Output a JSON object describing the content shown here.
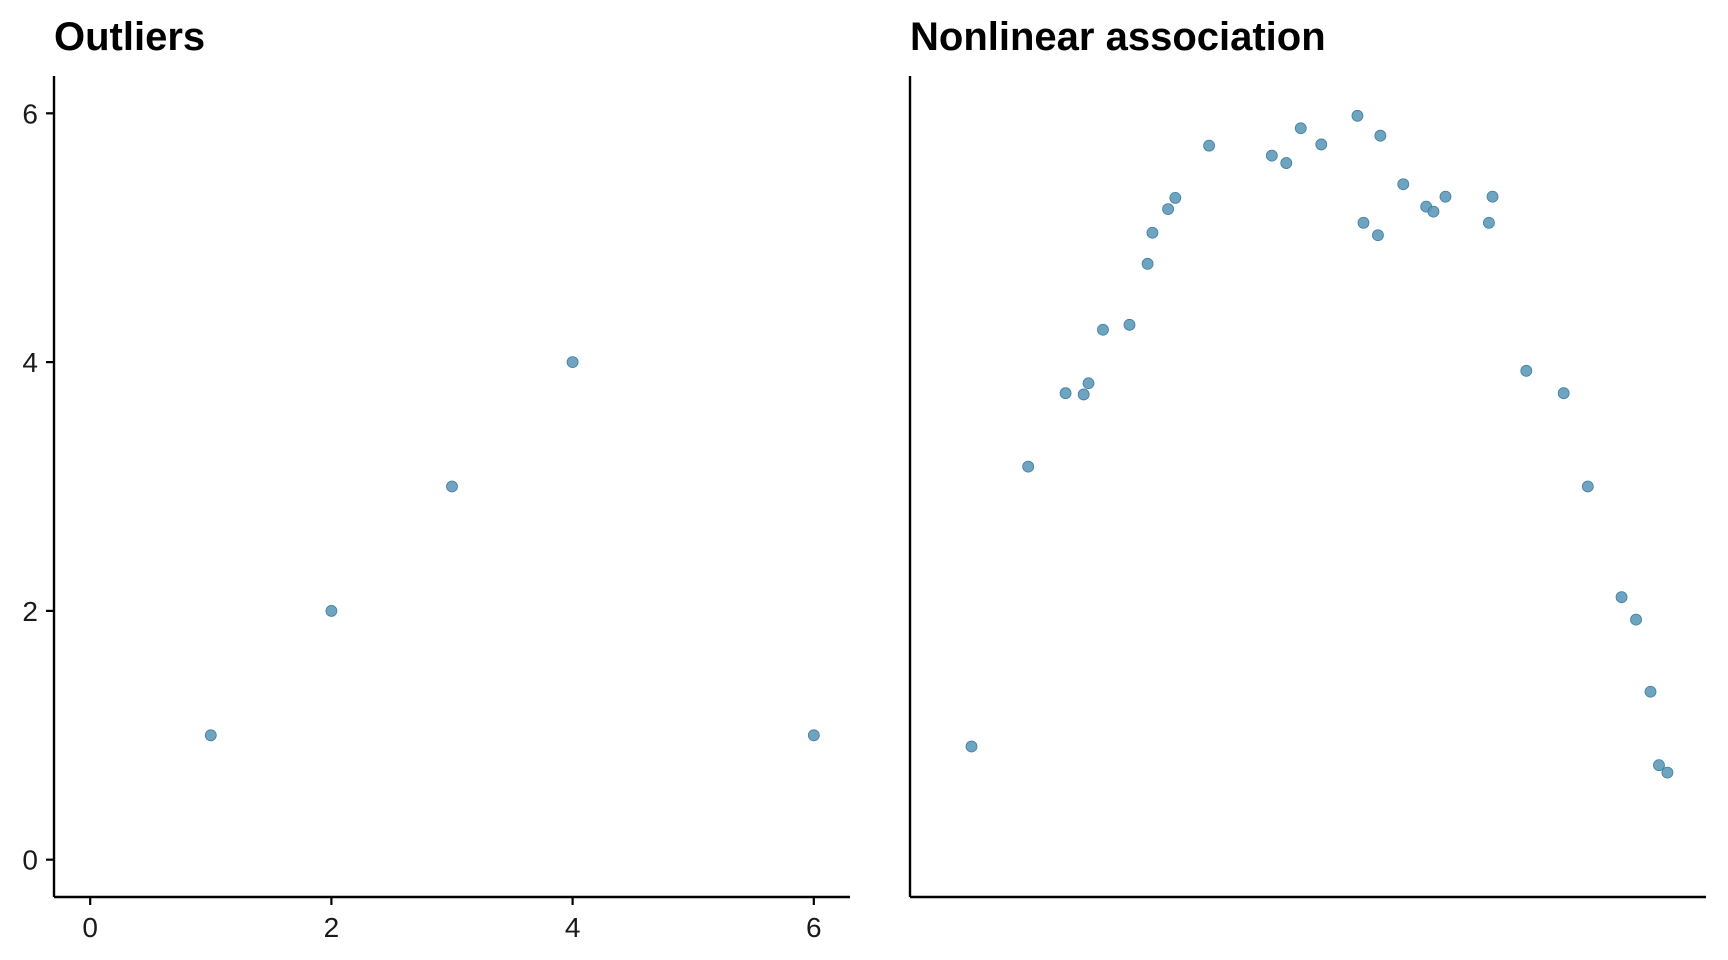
{
  "chart_data": [
    {
      "type": "scatter",
      "title": "Outliers",
      "xlabel": "",
      "ylabel": "",
      "xlim": [
        -0.3,
        6.3
      ],
      "ylim": [
        -0.3,
        6.3
      ],
      "xticks": [
        0,
        2,
        4,
        6
      ],
      "yticks": [
        0,
        2,
        4,
        6
      ],
      "show_x_ticks": true,
      "show_y_ticks": true,
      "grid": false,
      "point_color": "#5b97b8",
      "points": [
        {
          "x": 1,
          "y": 1
        },
        {
          "x": 2,
          "y": 2
        },
        {
          "x": 3,
          "y": 3
        },
        {
          "x": 4,
          "y": 4
        },
        {
          "x": 6,
          "y": 1
        }
      ]
    },
    {
      "type": "scatter",
      "title": "Nonlinear association",
      "xlabel": "",
      "ylabel": "",
      "xlim": [
        -0.3,
        6.3
      ],
      "ylim": [
        -0.3,
        6.3
      ],
      "xticks": [],
      "yticks": [],
      "show_x_ticks": false,
      "show_y_ticks": false,
      "grid": false,
      "point_color": "#5b97b8",
      "points": [
        {
          "x": 0.21,
          "y": 0.91
        },
        {
          "x": 0.68,
          "y": 3.16
        },
        {
          "x": 0.99,
          "y": 3.75
        },
        {
          "x": 1.14,
          "y": 3.74
        },
        {
          "x": 1.18,
          "y": 3.83
        },
        {
          "x": 1.3,
          "y": 4.26
        },
        {
          "x": 1.52,
          "y": 4.3
        },
        {
          "x": 1.67,
          "y": 4.79
        },
        {
          "x": 1.71,
          "y": 5.04
        },
        {
          "x": 1.84,
          "y": 5.23
        },
        {
          "x": 1.9,
          "y": 5.32
        },
        {
          "x": 2.18,
          "y": 5.74
        },
        {
          "x": 2.7,
          "y": 5.66
        },
        {
          "x": 2.82,
          "y": 5.6
        },
        {
          "x": 2.94,
          "y": 5.88
        },
        {
          "x": 3.11,
          "y": 5.75
        },
        {
          "x": 3.41,
          "y": 5.98
        },
        {
          "x": 3.46,
          "y": 5.12
        },
        {
          "x": 3.58,
          "y": 5.02
        },
        {
          "x": 3.6,
          "y": 5.82
        },
        {
          "x": 3.79,
          "y": 5.43
        },
        {
          "x": 3.98,
          "y": 5.25
        },
        {
          "x": 4.04,
          "y": 5.21
        },
        {
          "x": 4.14,
          "y": 5.33
        },
        {
          "x": 4.5,
          "y": 5.12
        },
        {
          "x": 4.53,
          "y": 5.33
        },
        {
          "x": 4.81,
          "y": 3.93
        },
        {
          "x": 5.12,
          "y": 3.75
        },
        {
          "x": 5.32,
          "y": 3.0
        },
        {
          "x": 5.6,
          "y": 2.11
        },
        {
          "x": 5.72,
          "y": 1.93
        },
        {
          "x": 5.84,
          "y": 1.35
        },
        {
          "x": 5.91,
          "y": 0.76
        },
        {
          "x": 5.98,
          "y": 0.7
        }
      ]
    }
  ]
}
